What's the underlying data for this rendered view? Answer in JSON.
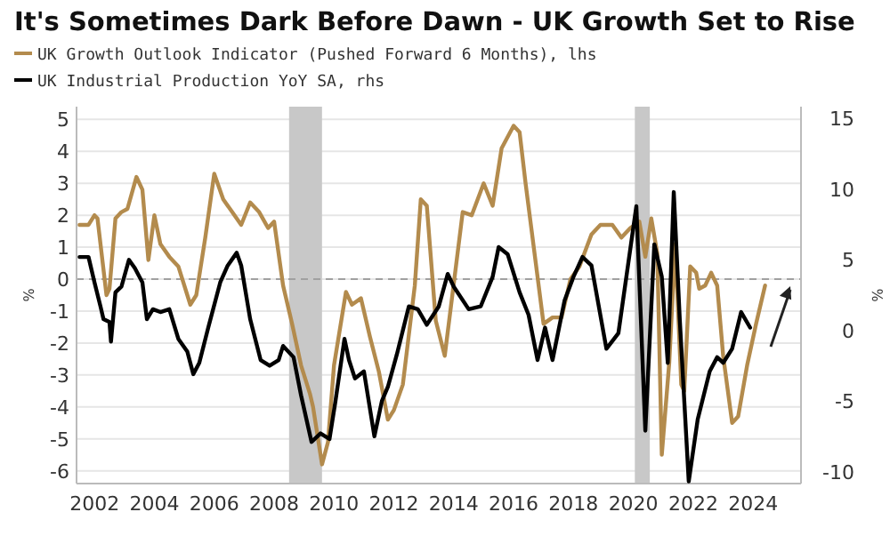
{
  "chart_data": {
    "type": "line",
    "title": "It's Sometimes Dark Before Dawn - UK Growth Set to Rise",
    "ylabel": "%",
    "y2label": "%",
    "legend": "top left",
    "grid": "y",
    "line_style": "solid",
    "xlim": [
      2001.4,
      2025.6
    ],
    "xticks": [
      2002,
      2004,
      2006,
      2008,
      2010,
      2012,
      2014,
      2016,
      2018,
      2020,
      2022,
      2024
    ],
    "ylim": [
      -6.4,
      5.4
    ],
    "yticks": [
      -6,
      -5,
      -4,
      -3,
      -2,
      -1,
      0,
      1,
      2,
      3,
      4,
      5
    ],
    "y2lim": [
      -10.85,
      15.85
    ],
    "y2ticks": [
      -10,
      -5,
      0,
      5,
      10,
      15
    ],
    "bands": [
      {
        "axis": "x",
        "from": 2008.5,
        "to": 2009.6,
        "color": "#c8c8c8"
      },
      {
        "axis": "x",
        "from": 2020.05,
        "to": 2020.55,
        "color": "#c8c8c8"
      }
    ],
    "ref_lines": [
      {
        "axis": "y",
        "value": 0,
        "color": "#a0a0a0",
        "line_style": "dashed"
      }
    ],
    "series": [
      {
        "name": "UK Growth Outlook Indicator (Pushed Forward 6 Months), lhs",
        "color": "#b38b4d",
        "axis": "y",
        "x": [
          2001.5,
          2001.8,
          2002.0,
          2002.1,
          2002.4,
          2002.5,
          2002.7,
          2002.9,
          2003.1,
          2003.4,
          2003.6,
          2003.8,
          2004.0,
          2004.2,
          2004.5,
          2004.8,
          2005.2,
          2005.4,
          2005.7,
          2006.0,
          2006.3,
          2006.6,
          2006.9,
          2007.2,
          2007.5,
          2007.8,
          2008.0,
          2008.3,
          2008.6,
          2008.9,
          2009.2,
          2009.3,
          2009.6,
          2009.8,
          2010.0,
          2010.4,
          2010.6,
          2010.9,
          2011.2,
          2011.5,
          2011.8,
          2012.0,
          2012.3,
          2012.7,
          2012.9,
          2013.1,
          2013.4,
          2013.7,
          2014.3,
          2014.6,
          2015.0,
          2015.3,
          2015.6,
          2016.0,
          2016.2,
          2016.4,
          2016.7,
          2017.0,
          2017.3,
          2017.6,
          2017.9,
          2018.2,
          2018.6,
          2018.9,
          2019.3,
          2019.6,
          2019.9,
          2020.2,
          2020.4,
          2020.6,
          2020.8,
          2020.95,
          2021.2,
          2021.4,
          2021.6,
          2021.7,
          2021.9,
          2022.1,
          2022.2,
          2022.4,
          2022.6,
          2022.8,
          2023.0,
          2023.3,
          2023.5,
          2023.8,
          2024.1,
          2024.4
        ],
        "values": [
          1.7,
          1.7,
          2.0,
          1.9,
          -0.5,
          -0.3,
          1.9,
          2.1,
          2.2,
          3.2,
          2.8,
          0.6,
          2.0,
          1.1,
          0.7,
          0.4,
          -0.8,
          -0.5,
          1.3,
          3.3,
          2.5,
          2.1,
          1.7,
          2.4,
          2.1,
          1.6,
          1.8,
          -0.2,
          -1.4,
          -2.7,
          -3.6,
          -4.0,
          -5.8,
          -5.1,
          -2.7,
          -0.4,
          -0.8,
          -0.6,
          -1.8,
          -2.9,
          -4.4,
          -4.1,
          -3.3,
          -0.2,
          2.5,
          2.3,
          -1.3,
          -2.4,
          2.1,
          2.0,
          3.0,
          2.3,
          4.1,
          4.8,
          4.6,
          3.0,
          0.8,
          -1.4,
          -1.2,
          -1.2,
          0.0,
          0.4,
          1.4,
          1.7,
          1.7,
          1.3,
          1.6,
          1.8,
          0.7,
          1.9,
          0.8,
          -5.5,
          -2.6,
          1.1,
          -3.3,
          -3.5,
          0.4,
          0.2,
          -0.3,
          -0.2,
          0.2,
          -0.2,
          -2.4,
          -4.5,
          -4.3,
          -2.7,
          -1.4,
          -0.2
        ]
      },
      {
        "name": "UK Industrial Production YoY SA, rhs",
        "color": "#000000",
        "axis": "y2",
        "x": [
          2001.5,
          2001.8,
          2002.0,
          2002.2,
          2002.3,
          2002.5,
          2002.55,
          2002.7,
          2002.9,
          2003.15,
          2003.35,
          2003.6,
          2003.75,
          2003.95,
          2004.2,
          2004.5,
          2004.8,
          2005.1,
          2005.3,
          2005.5,
          2005.8,
          2006.2,
          2006.45,
          2006.75,
          2006.9,
          2007.2,
          2007.55,
          2007.85,
          2008.15,
          2008.3,
          2008.65,
          2008.9,
          2009.25,
          2009.55,
          2009.85,
          2010.05,
          2010.35,
          2010.5,
          2010.7,
          2011.0,
          2011.35,
          2011.6,
          2011.8,
          2012.1,
          2012.5,
          2012.8,
          2013.1,
          2013.5,
          2013.8,
          2014.0,
          2014.5,
          2014.9,
          2015.3,
          2015.5,
          2015.8,
          2016.2,
          2016.5,
          2016.8,
          2017.05,
          2017.3,
          2017.7,
          2018.0,
          2018.3,
          2018.6,
          2019.1,
          2019.5,
          2020.1,
          2020.4,
          2020.7,
          2020.95,
          2021.15,
          2021.35,
          2021.55,
          2021.85,
          2022.15,
          2022.55,
          2022.8,
          2023.0,
          2023.3,
          2023.6,
          2023.9
        ],
        "values": [
          5.2,
          5.2,
          3.4,
          1.7,
          0.8,
          0.6,
          -0.8,
          2.7,
          3.1,
          5.0,
          4.4,
          3.4,
          0.8,
          1.5,
          1.3,
          1.5,
          -0.6,
          -1.5,
          -3.1,
          -2.3,
          0.2,
          3.4,
          4.6,
          5.5,
          4.6,
          0.8,
          -2.1,
          -2.5,
          -2.1,
          -1.1,
          -1.9,
          -4.6,
          -7.9,
          -7.3,
          -7.7,
          -5.0,
          -0.6,
          -2.1,
          -3.4,
          -2.9,
          -7.5,
          -5.0,
          -4.0,
          -1.7,
          1.7,
          1.5,
          0.4,
          1.7,
          4.0,
          3.1,
          1.5,
          1.7,
          3.8,
          5.9,
          5.4,
          2.7,
          1.1,
          -2.1,
          0.2,
          -2.1,
          2.1,
          3.8,
          5.2,
          4.6,
          -1.3,
          -0.2,
          8.8,
          -7.1,
          6.1,
          3.8,
          -2.3,
          9.8,
          0.8,
          -10.7,
          -6.3,
          -2.9,
          -1.9,
          -2.3,
          -1.3,
          1.3,
          0.2
        ]
      }
    ]
  }
}
